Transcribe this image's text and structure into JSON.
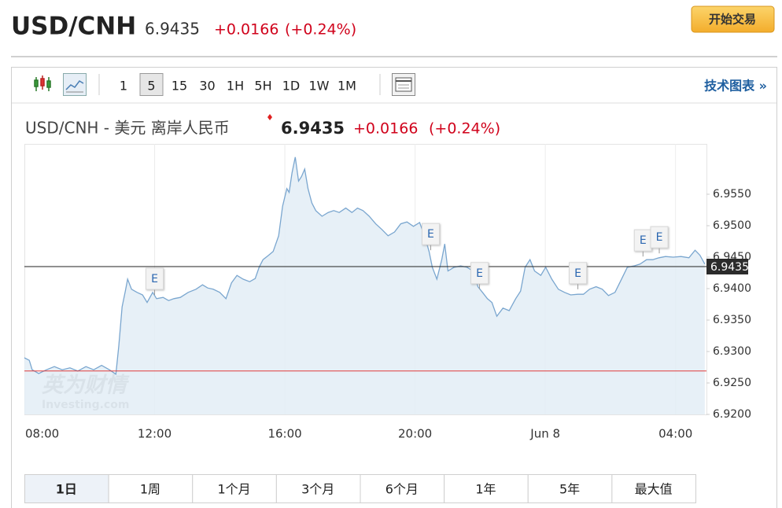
{
  "header": {
    "symbol": "USD/CNH",
    "price": "6.9435",
    "change": "+0.0166",
    "change_pct": "(+0.24%)",
    "button": "开始交易"
  },
  "toolbar": {
    "timeframes": [
      "1",
      "5",
      "15",
      "30",
      "1H",
      "5H",
      "1D",
      "1W",
      "1M"
    ],
    "active_timeframe": "5",
    "link": "技术图表 »"
  },
  "chart_header": {
    "title": "USD/CNH - 美元 离岸人民币",
    "price": "6.9435",
    "change": "+0.0166",
    "change_pct": "(+0.24%)"
  },
  "chart_data": {
    "type": "area",
    "x": [
      8.0,
      8.15,
      8.24,
      8.44,
      8.68,
      8.92,
      9.16,
      9.4,
      9.64,
      9.89,
      10.13,
      10.37,
      10.61,
      10.81,
      10.9,
      11.0,
      11.1,
      11.17,
      11.29,
      11.46,
      11.63,
      11.77,
      11.94,
      12.06,
      12.26,
      12.43,
      12.59,
      12.79,
      13.03,
      13.27,
      13.47,
      13.63,
      13.8,
      14.0,
      14.19,
      14.36,
      14.53,
      14.72,
      14.92,
      15.09,
      15.21,
      15.33,
      15.5,
      15.64,
      15.81,
      15.93,
      16.06,
      16.13,
      16.22,
      16.32,
      16.42,
      16.51,
      16.61,
      16.71,
      16.83,
      16.95,
      17.14,
      17.33,
      17.5,
      17.67,
      17.87,
      18.06,
      18.23,
      18.4,
      18.59,
      18.79,
      18.98,
      19.17,
      19.37,
      19.56,
      19.75,
      19.95,
      20.14,
      20.29,
      20.43,
      20.53,
      20.67,
      20.82,
      20.91,
      21.01,
      21.2,
      21.4,
      21.59,
      21.78,
      21.93,
      22.07,
      22.22,
      22.36,
      22.51,
      22.7,
      22.89,
      23.09,
      23.24,
      23.38,
      23.53,
      23.67,
      23.86,
      24.01,
      24.2,
      24.4,
      24.59,
      24.78,
      25.0,
      25.17,
      25.36,
      25.56,
      25.75,
      25.94,
      26.14,
      26.33,
      26.52,
      26.72,
      26.91,
      27.11,
      27.3,
      27.49,
      27.69,
      27.93,
      28.17,
      28.41,
      28.6,
      28.75,
      28.9
    ],
    "values": [
      6.929,
      6.9286,
      6.9271,
      6.9265,
      6.9271,
      6.9276,
      6.9271,
      6.9274,
      6.9269,
      6.9276,
      6.9271,
      6.9278,
      6.9271,
      6.9264,
      6.9309,
      6.9371,
      6.9396,
      6.9415,
      6.9399,
      6.9394,
      6.939,
      6.9378,
      6.9394,
      6.9384,
      6.9386,
      6.9381,
      6.9384,
      6.9386,
      6.9394,
      6.9399,
      6.9406,
      6.9401,
      6.9399,
      6.9394,
      6.9384,
      6.9409,
      6.9421,
      6.9415,
      6.9411,
      6.9416,
      6.9434,
      6.9446,
      6.9453,
      6.9459,
      6.9484,
      6.9531,
      6.9559,
      6.9553,
      6.9584,
      6.9609,
      6.9571,
      6.9578,
      6.959,
      6.9559,
      6.9536,
      6.9524,
      6.9515,
      6.9521,
      6.9524,
      6.9521,
      6.9528,
      6.9521,
      6.9528,
      6.9524,
      6.9515,
      6.9503,
      6.9494,
      6.9484,
      6.949,
      6.9503,
      6.9506,
      6.9499,
      6.9505,
      6.9484,
      6.9459,
      6.9434,
      6.9415,
      6.9446,
      6.9471,
      6.9428,
      6.9434,
      6.9436,
      6.9434,
      6.9428,
      6.9403,
      6.9394,
      6.9384,
      6.9378,
      6.9356,
      6.9369,
      6.9365,
      6.9384,
      6.9396,
      6.9434,
      6.9446,
      6.9428,
      6.9421,
      6.9434,
      6.9415,
      6.9399,
      6.9394,
      6.939,
      6.9391,
      6.9391,
      6.9399,
      6.9403,
      6.9399,
      6.9389,
      6.9394,
      6.9414,
      6.9434,
      6.9436,
      6.9439,
      6.9446,
      6.9446,
      6.9449,
      6.9451,
      6.945,
      6.9451,
      6.9449,
      6.9461,
      6.9453,
      6.9439
    ],
    "color": "#7aa6cf",
    "fill": "#e3edf6",
    "xlim": [
      8,
      28.95
    ],
    "xticks": [
      {
        "value": 8,
        "label": "08:00"
      },
      {
        "value": 12,
        "label": "12:00"
      },
      {
        "value": 16,
        "label": "16:00"
      },
      {
        "value": 20,
        "label": "20:00"
      },
      {
        "value": 24,
        "label": "Jun 8"
      },
      {
        "value": 28,
        "label": "04:00"
      }
    ],
    "ylim": [
      6.92,
      6.963
    ],
    "yticks": [
      {
        "value": 6.92,
        "label": "6.9200"
      },
      {
        "value": 6.925,
        "label": "6.9250"
      },
      {
        "value": 6.93,
        "label": "6.9300"
      },
      {
        "value": 6.935,
        "label": "6.9350"
      },
      {
        "value": 6.94,
        "label": "6.9400"
      },
      {
        "value": 6.945,
        "label": "6.9450"
      },
      {
        "value": 6.95,
        "label": "6.9500"
      },
      {
        "value": 6.955,
        "label": "6.9550"
      }
    ],
    "grid": "x",
    "last_value": 6.9435,
    "prev_close": 6.9269,
    "events": [
      {
        "x": 12.0,
        "y": 6.9415,
        "label": "E"
      },
      {
        "x": 20.48,
        "y": 6.9486,
        "label": "E"
      },
      {
        "x": 21.98,
        "y": 6.9424,
        "label": "E"
      },
      {
        "x": 25.0,
        "y": 6.9424,
        "label": "E"
      },
      {
        "x": 27.0,
        "y": 6.9476,
        "label": "E"
      },
      {
        "x": 27.5,
        "y": 6.9481,
        "label": "E"
      }
    ],
    "watermark": [
      "英为财情",
      "Investing.com"
    ]
  },
  "ranges": {
    "items": [
      "1日",
      "1周",
      "1个月",
      "3个月",
      "6个月",
      "1年",
      "5年",
      "最大值"
    ],
    "active": "1日"
  }
}
